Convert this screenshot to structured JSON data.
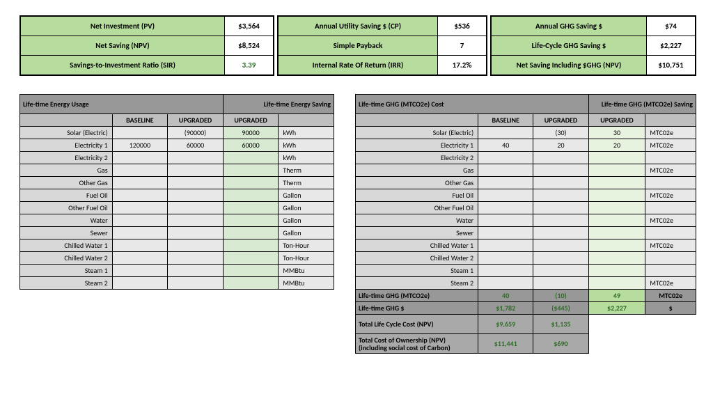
{
  "top": {
    "left": [
      {
        "label": "Net Investment (PV)",
        "value": "$3,564"
      },
      {
        "label": "Net Saving (NPV)",
        "value": "$8,524"
      },
      {
        "label": "Savings-to-Investment Ratio (SIR)",
        "value": "3.39",
        "sir": true
      }
    ],
    "mid": [
      {
        "label": "Annual Utility Saving $ (CP)",
        "value": "$536"
      },
      {
        "label": "Simple Payback",
        "value": "7"
      },
      {
        "label": "Internal Rate Of Return (IRR)",
        "value": "17.2%"
      }
    ],
    "right": [
      {
        "label": "Annual GHG Saving $",
        "value": "$74"
      },
      {
        "label": "Life-Cycle GHG Saving $",
        "value": "$2,227"
      },
      {
        "label": "Net Saving Including $GHG (NPV)",
        "value": "$10,751"
      }
    ]
  },
  "leftTable": {
    "title_left": "Life-time Energy Usage",
    "title_right": "Life-time Energy Saving",
    "cols": [
      "BASELINE",
      "UPGRADED",
      "UPGRADED"
    ],
    "colw": {
      "label": 120,
      "base": 72,
      "upg": 72,
      "upg2": 72,
      "unit": 72
    },
    "rows": [
      {
        "name": "Solar (Electric)",
        "base": "",
        "upg": "(90000)",
        "upg2": "90000",
        "unit": "kWh"
      },
      {
        "name": "Electricity 1",
        "base": "120000",
        "upg": "60000",
        "upg2": "60000",
        "unit": "kWh"
      },
      {
        "name": "Electricity 2",
        "base": "",
        "upg": "",
        "upg2": "",
        "unit": "kWh"
      },
      {
        "name": "Gas",
        "base": "",
        "upg": "",
        "upg2": "",
        "unit": "Therm"
      },
      {
        "name": "Other Gas",
        "base": "",
        "upg": "",
        "upg2": "",
        "unit": "Therm"
      },
      {
        "name": "Fuel Oil",
        "base": "",
        "upg": "",
        "upg2": "",
        "unit": "Gallon"
      },
      {
        "name": "Other Fuel Oil",
        "base": "",
        "upg": "",
        "upg2": "",
        "unit": "Gallon"
      },
      {
        "name": "Water",
        "base": "",
        "upg": "",
        "upg2": "",
        "unit": "Gallon"
      },
      {
        "name": "Sewer",
        "base": "",
        "upg": "",
        "upg2": "",
        "unit": "Gallon"
      },
      {
        "name": "Chilled Water 1",
        "base": "",
        "upg": "",
        "upg2": "",
        "unit": "Ton-Hour"
      },
      {
        "name": "Chilled Water 2",
        "base": "",
        "upg": "",
        "upg2": "",
        "unit": "Ton-Hour"
      },
      {
        "name": "Steam 1",
        "base": "",
        "upg": "",
        "upg2": "",
        "unit": "MMBtu"
      },
      {
        "name": "Steam 2",
        "base": "",
        "upg": "",
        "upg2": "",
        "unit": "MMBtu"
      }
    ]
  },
  "rightTable": {
    "title_left": "Life-time GHG (MTCO2e) Cost",
    "title_right": "Life-time GHG (MTCO2e) Saving",
    "cols": [
      "BASELINE",
      "UPGRADED",
      "UPGRADED"
    ],
    "colw": {
      "label": 160,
      "base": 72,
      "upg": 72,
      "upg2": 72,
      "unit": 64
    },
    "rows": [
      {
        "name": "Solar (Electric)",
        "base": "",
        "upg": "(30)",
        "upg2": "30",
        "unit": "MTC02e"
      },
      {
        "name": "Electricity 1",
        "base": "40",
        "upg": "20",
        "upg2": "20",
        "unit": "MTC02e"
      },
      {
        "name": "Electricity 2",
        "base": "",
        "upg": "",
        "upg2": "",
        "unit": ""
      },
      {
        "name": "Gas",
        "base": "",
        "upg": "",
        "upg2": "",
        "unit": "MTC02e"
      },
      {
        "name": "Other Gas",
        "base": "",
        "upg": "",
        "upg2": "",
        "unit": ""
      },
      {
        "name": "Fuel Oil",
        "base": "",
        "upg": "",
        "upg2": "",
        "unit": "MTC02e"
      },
      {
        "name": "Other Fuel Oil",
        "base": "",
        "upg": "",
        "upg2": "",
        "unit": ""
      },
      {
        "name": "Water",
        "base": "",
        "upg": "",
        "upg2": "",
        "unit": "MTC02e"
      },
      {
        "name": "Sewer",
        "base": "",
        "upg": "",
        "upg2": "",
        "unit": ""
      },
      {
        "name": "Chilled Water 1",
        "base": "",
        "upg": "",
        "upg2": "",
        "unit": "MTC02e"
      },
      {
        "name": "Chilled Water 2",
        "base": "",
        "upg": "",
        "upg2": "",
        "unit": ""
      },
      {
        "name": "Steam 1",
        "base": "",
        "upg": "",
        "upg2": "",
        "unit": ""
      },
      {
        "name": "Steam 2",
        "base": "",
        "upg": "",
        "upg2": "",
        "unit": "MTC02e"
      }
    ],
    "summary1": [
      {
        "label": "Life-time GHG (MTCO2e)",
        "base": "40",
        "upg": "(10)",
        "upg2": "49",
        "unit": "MTC02e"
      },
      {
        "label": "Life-time GHG $",
        "base": "$1,782",
        "upg": "($445)",
        "upg2": "$2,227",
        "unit": "$"
      }
    ],
    "summary2": [
      {
        "label": "Total Life Cycle Cost (NPV)",
        "base": "$9,659",
        "upg": "$1,135"
      },
      {
        "label": "Total Cost of Ownership (NPV) (including social cost of Carbon)",
        "base": "$11,441",
        "upg": "$690"
      }
    ]
  },
  "colors": {
    "green_fill": "#b6dc9e",
    "green_text": "#2f6b27",
    "grey_dark": "#989898",
    "grey_mid": "#bfbfbf",
    "grey_light": "#d8d8d8",
    "grey_cell": "#e8e8e8",
    "green_cell": "#d9ead3"
  }
}
